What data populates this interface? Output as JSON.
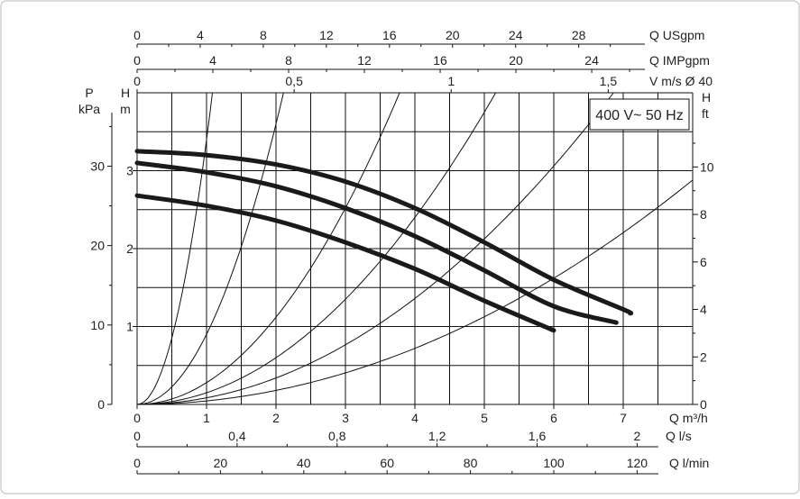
{
  "chart_data": {
    "type": "line",
    "title": "",
    "annotation": "400 V~ 50 Hz",
    "x_axes": {
      "q_m3h": {
        "label": "Q m³/h",
        "ticks": [
          "0",
          "1",
          "2",
          "3",
          "4",
          "5",
          "6",
          "7"
        ],
        "range": [
          0,
          8
        ]
      },
      "q_ls": {
        "label": "Q l/s",
        "ticks": [
          "0",
          "0,4",
          "0,8",
          "1,2",
          "1,6",
          "2"
        ],
        "values": [
          0,
          0.4,
          0.8,
          1.2,
          1.6,
          2.0
        ]
      },
      "q_lmin": {
        "label": "Q l/min",
        "ticks": [
          "0",
          "20",
          "40",
          "60",
          "80",
          "100",
          "120"
        ],
        "values": [
          0,
          20,
          40,
          60,
          80,
          100,
          120
        ]
      },
      "q_usgpm": {
        "label": "Q USgpm",
        "ticks": [
          "0",
          "4",
          "8",
          "12",
          "16",
          "20",
          "24",
          "28"
        ],
        "values": [
          0,
          4,
          8,
          12,
          16,
          20,
          24,
          28
        ]
      },
      "q_impgpm": {
        "label": "Q IMPgpm",
        "ticks": [
          "0",
          "4",
          "8",
          "12",
          "16",
          "20",
          "24"
        ],
        "values": [
          0,
          4,
          8,
          12,
          16,
          20,
          24
        ]
      },
      "v_ms": {
        "label": "V m/s Ø 40",
        "ticks": [
          "0",
          "0,5",
          "1",
          "1,5"
        ],
        "values": [
          0,
          0.5,
          1,
          1.5
        ]
      }
    },
    "y_axes": {
      "h_m": {
        "label_top": "H",
        "label_bottom": "m",
        "ticks": [
          "1",
          "2",
          "3"
        ],
        "values": [
          1,
          2,
          3
        ],
        "range": [
          0,
          4
        ]
      },
      "p_kpa": {
        "label_top": "P",
        "label_bottom": "kPa",
        "ticks": [
          "0",
          "10",
          "20",
          "30"
        ],
        "values": [
          0,
          10,
          20,
          30
        ]
      },
      "h_ft": {
        "label_top": "H",
        "label_bottom": "ft",
        "ticks": [
          "0",
          "2",
          "4",
          "6",
          "8",
          "10"
        ],
        "values": [
          0,
          2,
          4,
          6,
          8,
          10
        ]
      }
    },
    "grid": true,
    "series": [
      {
        "x": [
          0,
          1,
          2,
          3,
          4,
          5,
          6,
          7,
          7.1
        ],
        "y": [
          3.25,
          3.2,
          3.08,
          2.86,
          2.52,
          2.08,
          1.6,
          1.22,
          1.17
        ]
      },
      {
        "x": [
          0,
          1,
          2,
          3,
          4,
          5,
          6,
          6.9
        ],
        "y": [
          3.1,
          2.98,
          2.8,
          2.52,
          2.16,
          1.72,
          1.26,
          1.05
        ]
      },
      {
        "x": [
          0,
          1,
          2,
          3,
          4,
          5,
          6
        ],
        "y": [
          2.68,
          2.55,
          2.36,
          2.08,
          1.74,
          1.33,
          0.95
        ]
      }
    ],
    "system_curve_coefficients": [
      3.4,
      0.9,
      0.28,
      0.15,
      0.085,
      0.045
    ]
  }
}
